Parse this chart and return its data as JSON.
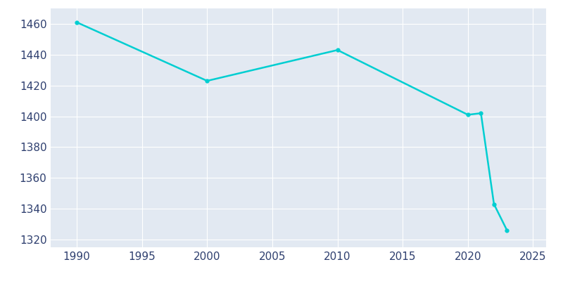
{
  "years": [
    1990,
    2000,
    2010,
    2020,
    2021,
    2022,
    2023
  ],
  "population": [
    1461,
    1423,
    1443,
    1401,
    1402,
    1343,
    1326
  ],
  "line_color": "#00CED1",
  "marker": "o",
  "marker_size": 3.5,
  "line_width": 1.8,
  "bg_color": "#FFFFFF",
  "plot_bg_color": "#E2E9F2",
  "grid_color": "#FFFFFF",
  "xlim": [
    1988,
    2026
  ],
  "ylim": [
    1315,
    1470
  ],
  "xticks": [
    1990,
    1995,
    2000,
    2005,
    2010,
    2015,
    2020,
    2025
  ],
  "yticks": [
    1320,
    1340,
    1360,
    1380,
    1400,
    1420,
    1440,
    1460
  ],
  "tick_color": "#2E3F6F",
  "tick_fontsize": 11
}
